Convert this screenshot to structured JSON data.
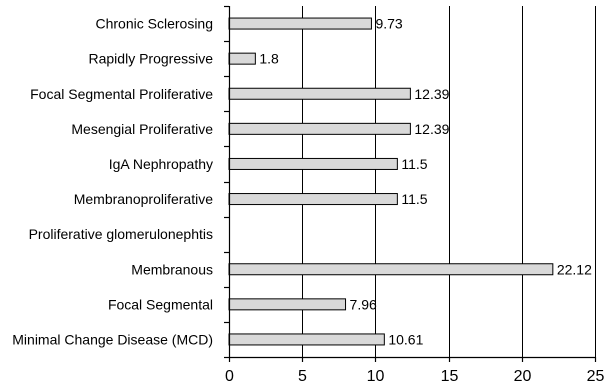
{
  "chart_data": {
    "type": "bar",
    "orientation": "horizontal",
    "title": "",
    "xlabel": "",
    "ylabel": "",
    "categories": [
      "Chronic Sclerosing",
      "Rapidly Progressive",
      "Focal Segmental Proliferative",
      "Mesengial Proliferative",
      "IgA Nephropathy",
      "Membranoproliferative",
      "Proliferative glomerulonephtis",
      "Membranous",
      "Focal Segmental",
      "Minimal Change Disease (MCD)"
    ],
    "values": [
      9.73,
      1.8,
      12.39,
      12.39,
      11.5,
      11.5,
      null,
      22.12,
      7.96,
      10.61
    ],
    "data_labels": [
      "9.73",
      "1.8",
      "12.39",
      "12.39",
      "11.5",
      "11.5",
      "",
      "22.12",
      "7.96",
      "10.61"
    ],
    "xlim": [
      0,
      25
    ],
    "x_ticks": [
      0,
      5,
      10,
      15,
      20,
      25
    ],
    "x_tick_labels": [
      "0",
      "5",
      "10",
      "15",
      "20",
      "25"
    ],
    "grid": "vertical",
    "legend": "none",
    "bar_color": "#d9d9d9",
    "edge_color": "#000000"
  }
}
